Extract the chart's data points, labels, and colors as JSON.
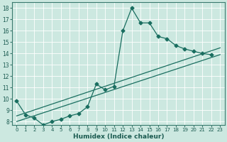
{
  "xlabel": "Humidex (Indice chaleur)",
  "ylabel": "",
  "bg_color": "#cce8e0",
  "grid_color": "#b0d8d0",
  "line_color": "#1a6e60",
  "xlim": [
    0,
    23
  ],
  "ylim": [
    8,
    18
  ],
  "xticks": [
    0,
    1,
    2,
    3,
    4,
    5,
    6,
    7,
    8,
    9,
    10,
    11,
    12,
    13,
    14,
    15,
    16,
    17,
    18,
    19,
    20,
    21,
    22,
    23
  ],
  "yticks": [
    8,
    9,
    10,
    11,
    12,
    13,
    14,
    15,
    16,
    17,
    18
  ],
  "line1_x": [
    0,
    1,
    2,
    3,
    4,
    5,
    6,
    7,
    8,
    9,
    10,
    11,
    12,
    13,
    14,
    15,
    16,
    17,
    18,
    19,
    20,
    21,
    22
  ],
  "line1_y": [
    9.8,
    8.6,
    8.3,
    7.7,
    8.0,
    8.2,
    8.5,
    8.7,
    9.3,
    11.3,
    10.8,
    11.1,
    16.0,
    18.0,
    16.7,
    16.7,
    15.5,
    15.3,
    14.7,
    14.4,
    14.2,
    14.0,
    13.9
  ],
  "line2_x": [
    0,
    23
  ],
  "line2_y": [
    8.5,
    14.5
  ],
  "line3_x": [
    0,
    23
  ],
  "line3_y": [
    8.0,
    13.9
  ],
  "marker_style": "D",
  "marker_size": 2.5,
  "linewidth": 0.9,
  "tick_fontsize": 5.5,
  "xlabel_fontsize": 6.5,
  "xlabel_color": "#1a5a50",
  "tick_color": "#1a5a50",
  "spine_color": "#3a7a6e"
}
